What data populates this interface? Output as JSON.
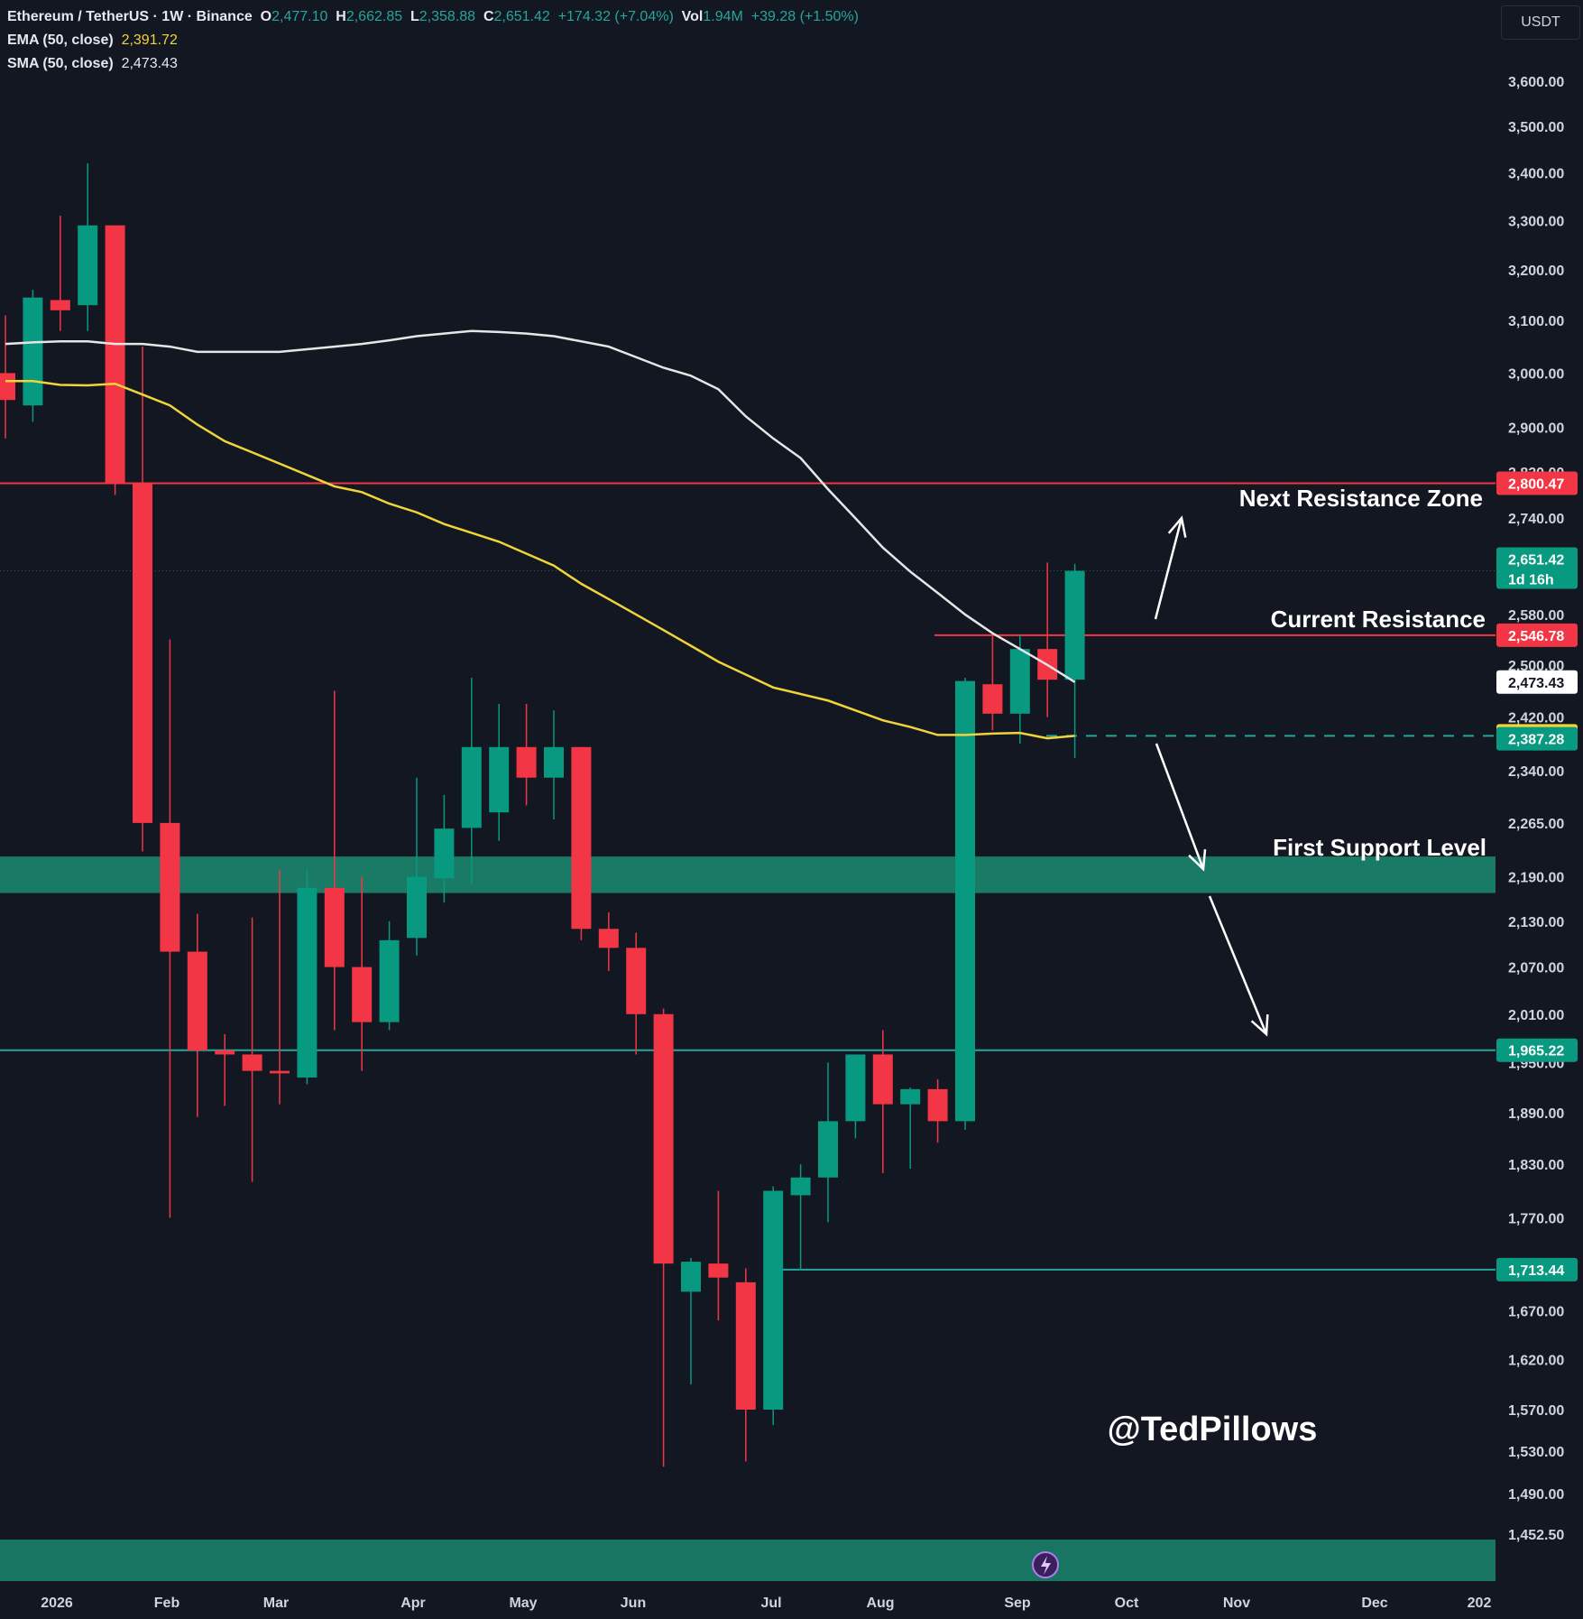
{
  "header": {
    "symbol": "Ethereum / TetherUS · 1W · Binance",
    "o_label": "O",
    "o_value": "2,477.10",
    "h_label": "H",
    "h_value": "2,662.85",
    "l_label": "L",
    "l_value": "2,358.88",
    "c_label": "C",
    "c_value": "2,651.42",
    "change": "+174.32 (+7.04%)",
    "vol_label": "Vol",
    "vol_value": "1.94M",
    "vol_change": "+39.28 (+1.50%)",
    "ema_label": "EMA (50, close)",
    "ema_value": "2,391.72",
    "sma_label": "SMA (50, close)",
    "sma_value": "2,473.43"
  },
  "currency_button": "USDT",
  "watermark": "@TedPillows",
  "colors": {
    "background": "#131722",
    "up": "#089981",
    "down": "#f23645",
    "ema": "#f0d43a",
    "sma": "#e6e6e6",
    "resistance": "#f23645",
    "support": "#1a8a70"
  },
  "chart_data": {
    "type": "candlestick",
    "title": "Ethereum / TetherUS · 1W · Binance",
    "price_axis": {
      "ticks": [
        3600,
        3500,
        3400,
        3300,
        3200,
        3100,
        3000,
        2900,
        2820,
        2740,
        2580,
        2500,
        2420,
        2340,
        2265,
        2190,
        2130,
        2070,
        2010,
        1950,
        1890,
        1830,
        1770,
        1670,
        1620,
        1570,
        1530,
        1490,
        1452.5
      ],
      "tick_labels": [
        "3,600.00",
        "3,500.00",
        "3,400.00",
        "3,300.00",
        "3,200.00",
        "3,100.00",
        "3,000.00",
        "2,900.00",
        "2,820.00",
        "2,740.00",
        "2,580.00",
        "2,500.00",
        "2,420.00",
        "2,340.00",
        "2,265.00",
        "2,190.00",
        "2,130.00",
        "2,070.00",
        "2,010.00",
        "1,950.00",
        "1,890.00",
        "1,830.00",
        "1,770.00",
        "1,670.00",
        "1,620.00",
        "1,570.00",
        "1,530.00",
        "1,490.00",
        "1,452.50"
      ],
      "scale": "log"
    },
    "time_axis": {
      "labels": [
        "2026",
        "Feb",
        "Mar",
        "Apr",
        "May",
        "Jun",
        "Jul",
        "Aug",
        "Sep",
        "Oct",
        "Nov",
        "Dec",
        "202"
      ]
    },
    "candles": [
      {
        "o": 3000,
        "h": 3110,
        "l": 2880,
        "c": 2950
      },
      {
        "o": 2940,
        "h": 3160,
        "l": 2910,
        "c": 3145
      },
      {
        "o": 3140,
        "h": 3310,
        "l": 3080,
        "c": 3120
      },
      {
        "o": 3130,
        "h": 3420,
        "l": 3080,
        "c": 3290
      },
      {
        "o": 3290,
        "h": 3290,
        "l": 2780,
        "c": 2800
      },
      {
        "o": 2800,
        "h": 3050,
        "l": 2225,
        "c": 2265
      },
      {
        "o": 2265,
        "h": 2540,
        "l": 1770,
        "c": 2090
      },
      {
        "o": 2090,
        "h": 2140,
        "l": 1885,
        "c": 1965
      },
      {
        "o": 1965,
        "h": 1985,
        "l": 1898,
        "c": 1960
      },
      {
        "o": 1960,
        "h": 2135,
        "l": 1810,
        "c": 1940
      },
      {
        "o": 1940,
        "h": 2200,
        "l": 1900,
        "c": 1937
      },
      {
        "o": 1932,
        "h": 2200,
        "l": 1924,
        "c": 2175
      },
      {
        "o": 2175,
        "h": 2460,
        "l": 1990,
        "c": 2070
      },
      {
        "o": 2070,
        "h": 2190,
        "l": 1940,
        "c": 2000
      },
      {
        "o": 2000,
        "h": 2130,
        "l": 1990,
        "c": 2105
      },
      {
        "o": 2108,
        "h": 2330,
        "l": 2085,
        "c": 2190
      },
      {
        "o": 2188,
        "h": 2305,
        "l": 2155,
        "c": 2257
      },
      {
        "o": 2258,
        "h": 2480,
        "l": 2180,
        "c": 2375
      },
      {
        "o": 2280,
        "h": 2440,
        "l": 2240,
        "c": 2375
      },
      {
        "o": 2375,
        "h": 2440,
        "l": 2290,
        "c": 2330
      },
      {
        "o": 2330,
        "h": 2430,
        "l": 2270,
        "c": 2375
      },
      {
        "o": 2375,
        "h": 2375,
        "l": 2105,
        "c": 2120
      },
      {
        "o": 2120,
        "h": 2142,
        "l": 2065,
        "c": 2095
      },
      {
        "o": 2095,
        "h": 2115,
        "l": 1960,
        "c": 2010
      },
      {
        "o": 2010,
        "h": 2017,
        "l": 1515,
        "c": 1720
      },
      {
        "o": 1690,
        "h": 1726,
        "l": 1595,
        "c": 1722
      },
      {
        "o": 1720,
        "h": 1800,
        "l": 1660,
        "c": 1705
      },
      {
        "o": 1700,
        "h": 1715,
        "l": 1520,
        "c": 1570
      },
      {
        "o": 1570,
        "h": 1805,
        "l": 1555,
        "c": 1800
      },
      {
        "o": 1795,
        "h": 1830,
        "l": 1713,
        "c": 1815
      },
      {
        "o": 1815,
        "h": 1950,
        "l": 1765,
        "c": 1880
      },
      {
        "o": 1880,
        "h": 1960,
        "l": 1860,
        "c": 1960
      },
      {
        "o": 1960,
        "h": 1990,
        "l": 1820,
        "c": 1900
      },
      {
        "o": 1900,
        "h": 1920,
        "l": 1825,
        "c": 1918
      },
      {
        "o": 1918,
        "h": 1930,
        "l": 1855,
        "c": 1880
      },
      {
        "o": 1880,
        "h": 2480,
        "l": 1870,
        "c": 2475
      },
      {
        "o": 2470,
        "h": 2545,
        "l": 2400,
        "c": 2425
      },
      {
        "o": 2425,
        "h": 2548,
        "l": 2380,
        "c": 2525
      },
      {
        "o": 2525,
        "h": 2665,
        "l": 2420,
        "c": 2477
      },
      {
        "o": 2477.1,
        "h": 2662.85,
        "l": 2358.88,
        "c": 2651.42
      }
    ],
    "ema_50": [
      2985,
      2985,
      2978,
      2977,
      2980,
      2960,
      2940,
      2905,
      2875,
      2855,
      2835,
      2815,
      2795,
      2785,
      2765,
      2750,
      2730,
      2715,
      2700,
      2680,
      2660,
      2630,
      2605,
      2580,
      2555,
      2530,
      2505,
      2485,
      2465,
      2455,
      2445,
      2430,
      2415,
      2405,
      2393,
      2393,
      2395,
      2396,
      2388,
      2391.72
    ],
    "sma_50": [
      3055,
      3058,
      3060,
      3060,
      3055,
      3055,
      3050,
      3040,
      3040,
      3040,
      3040,
      3045,
      3050,
      3055,
      3062,
      3070,
      3075,
      3080,
      3078,
      3075,
      3070,
      3060,
      3050,
      3030,
      3010,
      2995,
      2970,
      2920,
      2880,
      2845,
      2790,
      2740,
      2690,
      2650,
      2615,
      2580,
      2550,
      2525,
      2500,
      2473.43
    ],
    "price_labels": [
      {
        "value": 2800.47,
        "label": "2,800.47",
        "color": "red"
      },
      {
        "value": 2651.42,
        "label": "2,651.42",
        "sub": "1d 16h",
        "color": "green"
      },
      {
        "value": 2546.78,
        "label": "2,546.78",
        "color": "red"
      },
      {
        "value": 2473.43,
        "label": "2,473.43",
        "color": "white"
      },
      {
        "value": 2391.72,
        "label": "2,391.72",
        "color": "yellow"
      },
      {
        "value": 2387.28,
        "label": "2,387.28",
        "color": "green"
      },
      {
        "value": 1965.22,
        "label": "1,965.22",
        "color": "green"
      },
      {
        "value": 1713.44,
        "label": "1,713.44",
        "color": "green"
      }
    ],
    "levels": [
      {
        "name": "Next Resistance Zone",
        "value": 2800.47
      },
      {
        "name": "Current Resistance",
        "value": 2546.78
      },
      {
        "name": "First Support Level",
        "value": 2190
      },
      {
        "name": "",
        "value": 1965.22
      },
      {
        "name": "",
        "value": 1713.44
      },
      {
        "name": "",
        "value": 2391.72
      }
    ],
    "annotations": [
      "Next Resistance Zone",
      "Current Resistance",
      "First Support Level"
    ],
    "grid": false
  }
}
